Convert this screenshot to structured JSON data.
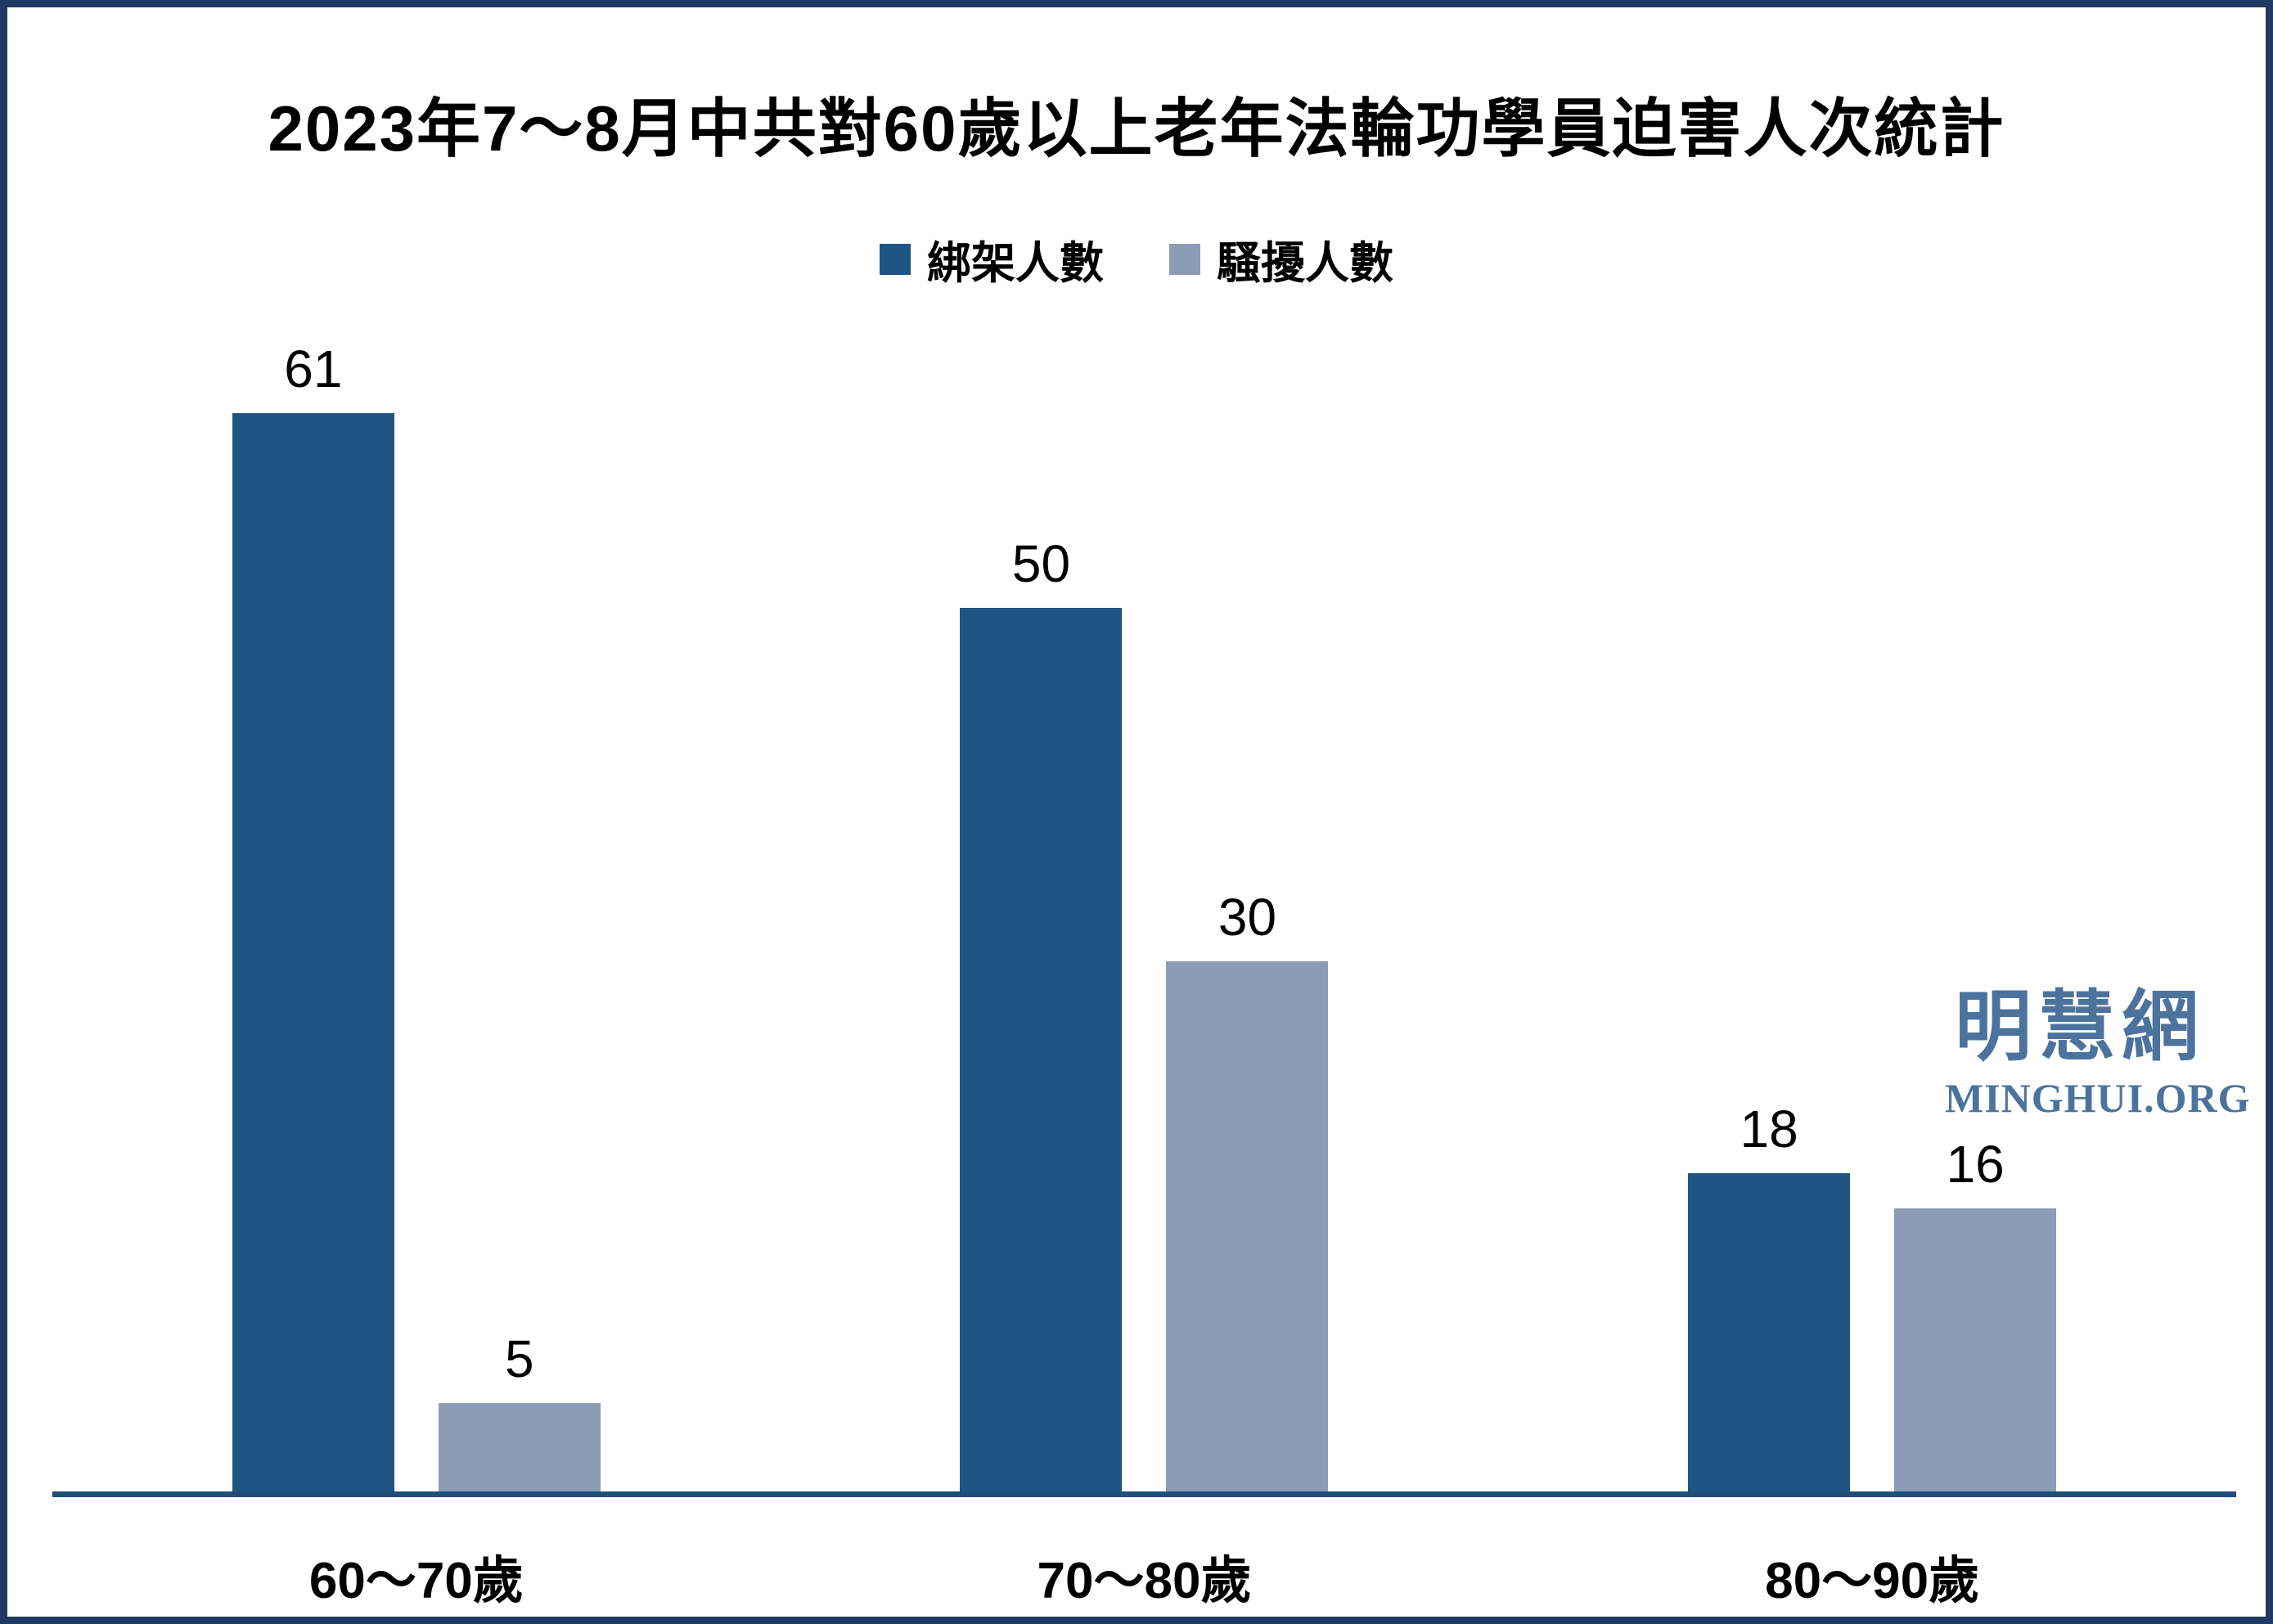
{
  "title": "2023年7～8月中共對60歲以上老年法輪功學員迫害人次統計",
  "watermark": {
    "cjk": "明慧網",
    "latin": "MINGHUI.ORG"
  },
  "colors": {
    "frame_border": "#1f3864",
    "axis_line": "#1f4e79",
    "series_kidnapped": "#1f5583",
    "series_harassed": "#8c9cb5",
    "watermark": "#4c739d",
    "text": "#000000",
    "background": "#ffffff"
  },
  "chart_data": {
    "type": "bar",
    "title": "2023年7～8月中共對60歲以上老年法輪功學員迫害人次統計",
    "categories": [
      "60～70歲",
      "70～80歲",
      "80～90歲"
    ],
    "series": [
      {
        "name": "綁架人數",
        "color": "#1f5583",
        "values": [
          61,
          50,
          18
        ]
      },
      {
        "name": "騷擾人數",
        "color": "#8c9cb5",
        "values": [
          5,
          30,
          16
        ]
      }
    ],
    "value_labels": [
      [
        "61",
        "50",
        "18"
      ],
      [
        "5",
        "30",
        "16"
      ]
    ],
    "xlabel": "",
    "ylabel": "",
    "ylim": [
      0,
      65
    ],
    "grid": false,
    "y_axis_visible": false,
    "legend_position": "top-center"
  }
}
